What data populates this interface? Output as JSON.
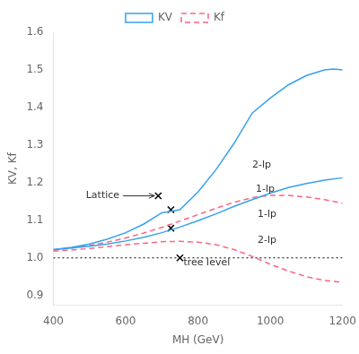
{
  "chart_data": {
    "type": "line",
    "x_label": "MH (GeV)",
    "y_label": "KV, Kf",
    "xlim": [
      400,
      1200
    ],
    "ylim": [
      0.875,
      1.6
    ],
    "xticks": [
      400,
      600,
      800,
      1000,
      1200
    ],
    "yticks": [
      0.9,
      {
        "value": 1.0,
        "label": "1.0"
      },
      1.1,
      1.2,
      1.3,
      1.4,
      1.5,
      1.6
    ],
    "grid": false,
    "legend": "upper center",
    "reference_lines": [
      {
        "y": 1.0,
        "line_style": "dotted",
        "color": "#000000"
      }
    ],
    "series": [
      {
        "name": "KV",
        "color": "#36a2eb",
        "line_style": "solid",
        "x": [
          400,
          450,
          500,
          550,
          600,
          650,
          700,
          750,
          800,
          850,
          900,
          950,
          1000,
          1050,
          1100,
          1150,
          1175,
          1200
        ],
        "values": [
          1.022,
          1.028,
          1.037,
          1.05,
          1.067,
          1.09,
          1.12,
          1.128,
          1.175,
          1.235,
          1.305,
          1.385,
          1.425,
          1.46,
          1.485,
          1.5,
          1.502,
          1.5
        ]
      },
      {
        "name": "KV",
        "color": "#36a2eb",
        "line_style": "solid",
        "x": [
          400,
          450,
          500,
          550,
          600,
          650,
          700,
          750,
          800,
          850,
          900,
          950,
          1000,
          1050,
          1100,
          1150,
          1200
        ],
        "values": [
          1.022,
          1.026,
          1.031,
          1.037,
          1.045,
          1.055,
          1.067,
          1.082,
          1.099,
          1.117,
          1.137,
          1.155,
          1.172,
          1.187,
          1.198,
          1.207,
          1.213
        ]
      },
      {
        "name": "Kf",
        "color": "#ff6384",
        "line_style": "dashed",
        "x": [
          400,
          450,
          500,
          550,
          600,
          650,
          700,
          750,
          800,
          850,
          900,
          950,
          1000,
          1050,
          1100,
          1150,
          1200
        ],
        "values": [
          1.02,
          1.026,
          1.033,
          1.042,
          1.053,
          1.066,
          1.081,
          1.098,
          1.115,
          1.132,
          1.148,
          1.16,
          1.166,
          1.166,
          1.162,
          1.155,
          1.145
        ]
      },
      {
        "name": "Kf",
        "color": "#ff6384",
        "line_style": "dashed",
        "x": [
          400,
          450,
          500,
          550,
          600,
          650,
          700,
          750,
          800,
          850,
          900,
          950,
          1000,
          1050,
          1100,
          1150,
          1200
        ],
        "values": [
          1.018,
          1.021,
          1.025,
          1.03,
          1.035,
          1.039,
          1.043,
          1.044,
          1.042,
          1.035,
          1.022,
          1.004,
          0.983,
          0.965,
          0.95,
          0.94,
          0.935
        ]
      },
      {
        "type": "scatter",
        "marker": "cross",
        "color": "#000000",
        "x": [
          725,
          725,
          750,
          690
        ],
        "values": [
          1.128,
          1.079,
          1.0,
          1.165
        ]
      }
    ],
    "annotations": [
      {
        "text": "Lattice",
        "x": 490,
        "y": 1.165,
        "arrow_to": {
          "x": 680,
          "y": 1.165
        }
      },
      {
        "text": "2-lp",
        "x": 950,
        "y": 1.248
      },
      {
        "text": "1-lp",
        "x": 960,
        "y": 1.183
      },
      {
        "text": "1-lp",
        "x": 965,
        "y": 1.115
      },
      {
        "text": "2-lp",
        "x": 965,
        "y": 1.047
      },
      {
        "text": "tree level",
        "x": 760,
        "y": 0.986
      }
    ]
  }
}
